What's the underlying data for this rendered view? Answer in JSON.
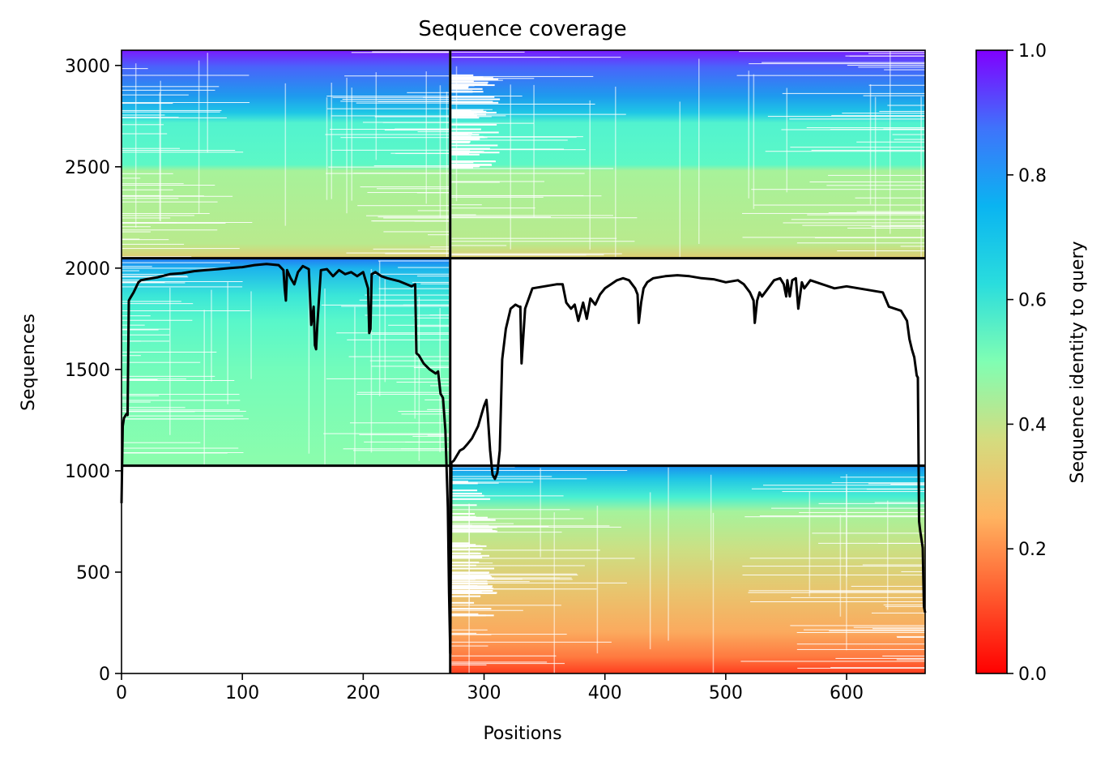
{
  "chart_data": {
    "type": "heatmap",
    "title": "Sequence coverage",
    "xlabel": "Positions",
    "ylabel": "Sequences",
    "xlim": [
      0,
      665
    ],
    "ylim": [
      0,
      3075
    ],
    "x_ticks": [
      0,
      100,
      200,
      300,
      400,
      500,
      600
    ],
    "y_ticks": [
      0,
      500,
      1000,
      1500,
      2000,
      2500,
      3000
    ],
    "x_tick_labels": [
      "0",
      "100",
      "200",
      "300",
      "400",
      "500",
      "600"
    ],
    "y_tick_labels": [
      "0",
      "500",
      "1000",
      "1500",
      "2000",
      "2500",
      "3000"
    ],
    "colorbar": {
      "label": "Sequence identity to query",
      "range": [
        0,
        1
      ],
      "ticks": [
        0.0,
        0.2,
        0.4,
        0.6,
        0.8,
        1.0
      ],
      "tick_labels": [
        "0.0",
        "0.2",
        "0.4",
        "0.6",
        "0.8",
        "1.0"
      ],
      "colormap": "rainbow_r"
    },
    "blocks": [
      {
        "name": "top-left",
        "x": [
          0,
          271
        ],
        "y": [
          2049,
          3075
        ],
        "identity_top": 0.95,
        "identity_bottom": 0.32
      },
      {
        "name": "top-right",
        "x": [
          273,
          665
        ],
        "y": [
          2049,
          3075
        ],
        "identity_top": 0.95,
        "identity_bottom": 0.32
      },
      {
        "name": "middle-left",
        "x": [
          0,
          271
        ],
        "y": [
          1025,
          2049
        ],
        "identity_top": 0.8,
        "identity_bottom": 0.45
      },
      {
        "name": "bottom-right",
        "x": [
          273,
          665
        ],
        "y": [
          0,
          1025
        ],
        "identity_top": 0.75,
        "identity_bottom": 0.08
      }
    ],
    "dividers": {
      "vertical_x": 272,
      "horizontal_y": [
        1025,
        2049
      ]
    },
    "coverage_line": {
      "x": [
        0,
        1,
        2,
        3,
        4,
        5,
        6,
        7,
        10,
        14,
        16,
        20,
        30,
        40,
        50,
        60,
        70,
        80,
        90,
        100,
        110,
        120,
        130,
        134,
        135,
        136,
        137,
        140,
        143,
        146,
        150,
        155,
        157,
        159,
        160,
        161,
        162,
        165,
        170,
        175,
        180,
        185,
        190,
        195,
        200,
        202,
        204,
        205,
        206,
        207,
        210,
        215,
        220,
        230,
        240,
        243,
        244,
        246,
        250,
        255,
        260,
        262,
        264,
        266,
        268,
        270,
        271,
        272,
        273,
        275,
        278,
        280,
        283,
        286,
        290,
        295,
        298,
        300,
        302,
        303,
        305,
        307,
        309,
        311,
        313,
        315,
        318,
        322,
        326,
        329,
        330,
        331,
        334,
        340,
        350,
        360,
        365,
        368,
        372,
        375,
        378,
        382,
        385,
        388,
        392,
        396,
        400,
        405,
        410,
        415,
        420,
        425,
        427,
        428,
        430,
        432,
        435,
        440,
        450,
        460,
        470,
        480,
        490,
        500,
        510,
        515,
        520,
        523,
        524,
        526,
        528,
        530,
        535,
        540,
        545,
        548,
        550,
        551,
        553,
        555,
        558,
        560,
        563,
        565,
        570,
        580,
        590,
        600,
        610,
        620,
        630,
        635,
        640,
        645,
        650,
        652,
        654,
        656,
        658,
        659,
        660,
        661,
        662,
        663,
        664,
        665
      ],
      "y": [
        840,
        1220,
        1260,
        1270,
        1280,
        1275,
        1840,
        1850,
        1880,
        1930,
        1940,
        1945,
        1955,
        1970,
        1975,
        1985,
        1990,
        1995,
        2000,
        2005,
        2015,
        2020,
        2015,
        1990,
        1900,
        1840,
        1990,
        1950,
        1920,
        1980,
        2010,
        1995,
        1720,
        1810,
        1620,
        1600,
        1720,
        1990,
        1995,
        1960,
        1990,
        1970,
        1980,
        1960,
        1980,
        1940,
        1900,
        1680,
        1700,
        1970,
        1980,
        1960,
        1950,
        1935,
        1910,
        1920,
        1580,
        1570,
        1530,
        1500,
        1480,
        1490,
        1380,
        1360,
        1200,
        820,
        400,
        100,
        1040,
        1050,
        1080,
        1100,
        1110,
        1130,
        1160,
        1220,
        1280,
        1320,
        1350,
        1280,
        1100,
        980,
        960,
        990,
        1100,
        1550,
        1700,
        1800,
        1820,
        1810,
        1810,
        1530,
        1800,
        1900,
        1910,
        1920,
        1920,
        1830,
        1800,
        1820,
        1740,
        1830,
        1750,
        1850,
        1820,
        1870,
        1900,
        1920,
        1940,
        1950,
        1940,
        1900,
        1870,
        1730,
        1830,
        1900,
        1930,
        1950,
        1960,
        1965,
        1960,
        1950,
        1945,
        1930,
        1940,
        1920,
        1880,
        1840,
        1730,
        1840,
        1880,
        1860,
        1900,
        1940,
        1950,
        1920,
        1860,
        1940,
        1860,
        1940,
        1950,
        1800,
        1930,
        1900,
        1940,
        1920,
        1900,
        1910,
        1900,
        1890,
        1880,
        1810,
        1800,
        1790,
        1740,
        1650,
        1600,
        1560,
        1470,
        1460,
        750,
        700,
        660,
        620,
        330,
        300
      ]
    }
  }
}
